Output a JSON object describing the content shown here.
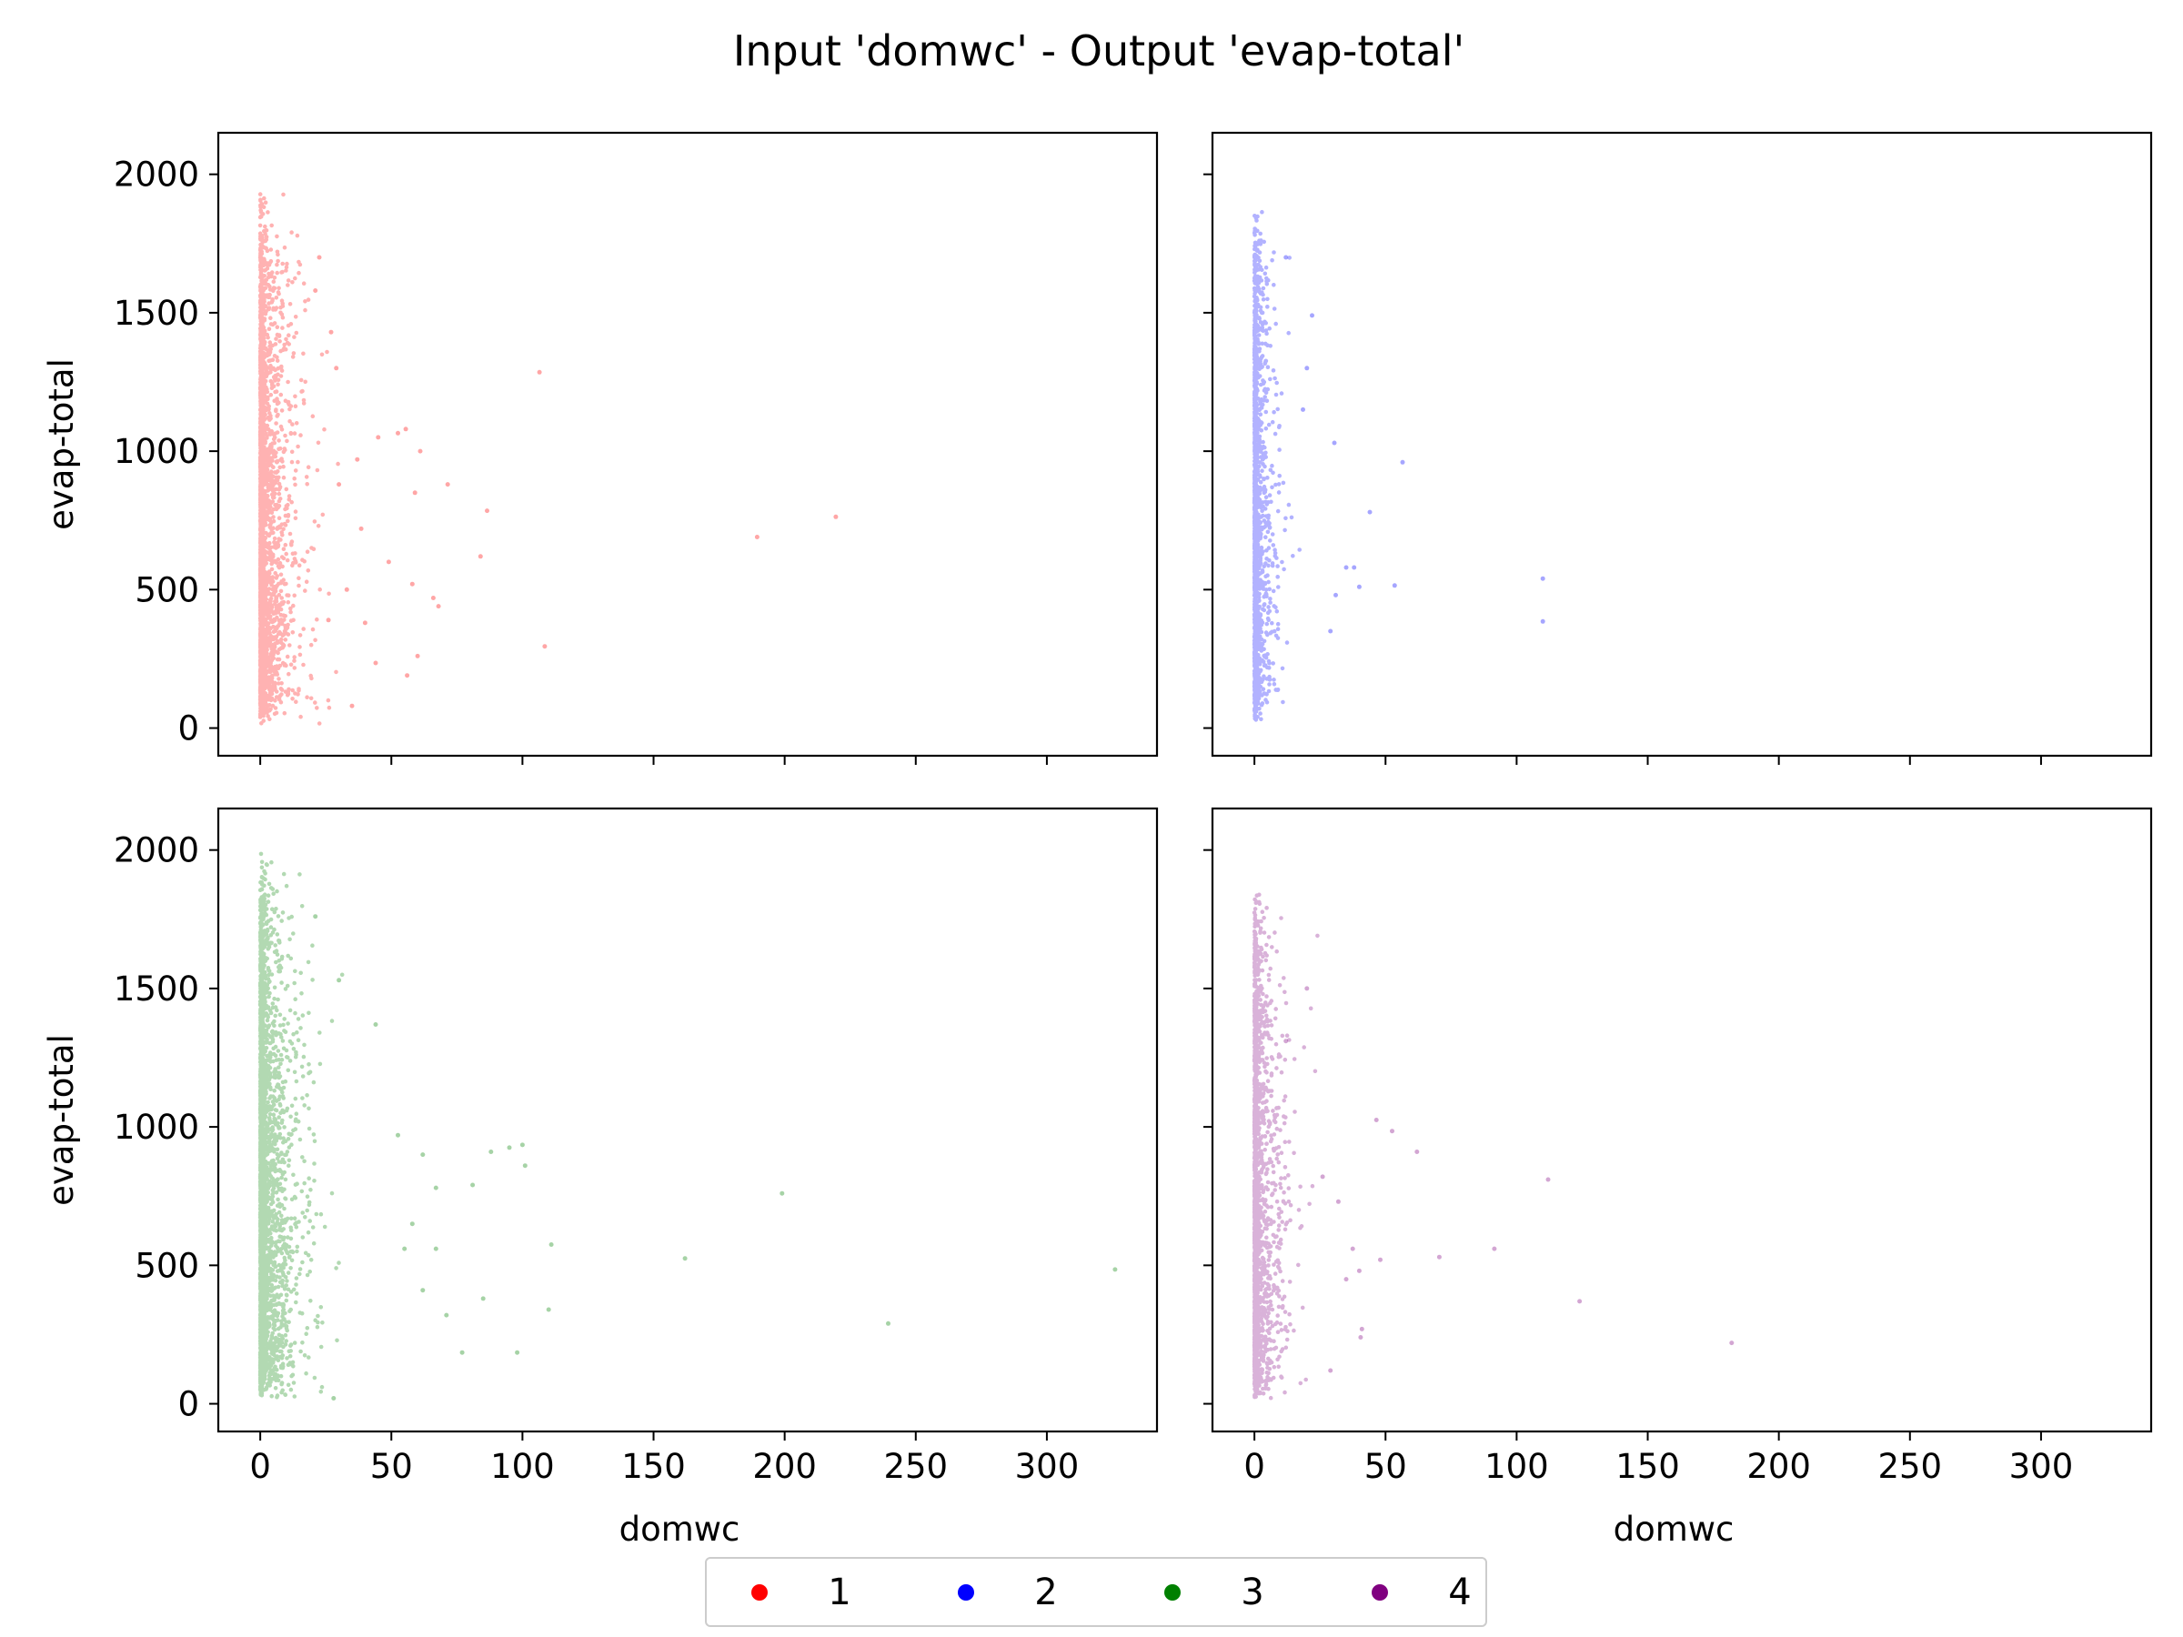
{
  "figure": {
    "title": "Input 'domwc' - Output 'evap-total'"
  },
  "chart_data": [
    {
      "type": "scatter",
      "panel": "top-left",
      "color": "#ff0000",
      "xlabel": "",
      "ylabel": "evap-total",
      "xlim": [
        -16,
        342
      ],
      "ylim": [
        -100,
        2150
      ],
      "xticks": [
        0,
        50,
        100,
        150,
        200,
        250,
        300
      ],
      "yticks": [
        0,
        500,
        1000,
        1500,
        2000
      ],
      "show_xticklabels": false,
      "show_yticklabels": true,
      "grid": false,
      "cluster": {
        "n": 3200,
        "ymax": 1950,
        "spread": 4.5
      },
      "outliers": [
        [
          106.5,
          1285
        ],
        [
          219.5,
          763
        ],
        [
          189.5,
          690
        ],
        [
          108.5,
          295
        ],
        [
          86.5,
          785
        ],
        [
          71.5,
          880
        ],
        [
          84,
          620
        ],
        [
          61,
          1000
        ],
        [
          52.5,
          1065
        ],
        [
          55.5,
          1080
        ],
        [
          45,
          1050
        ],
        [
          59,
          850
        ],
        [
          66,
          470
        ],
        [
          68,
          440
        ],
        [
          58,
          520
        ],
        [
          38.5,
          720
        ],
        [
          37,
          970
        ],
        [
          29,
          1300
        ],
        [
          27,
          1430
        ],
        [
          22.5,
          1700
        ],
        [
          21,
          1580
        ],
        [
          56,
          190
        ],
        [
          44,
          235
        ],
        [
          35,
          80
        ],
        [
          26,
          390
        ],
        [
          33,
          500
        ],
        [
          40,
          380
        ],
        [
          49,
          600
        ],
        [
          60,
          260
        ],
        [
          30,
          880
        ]
      ]
    },
    {
      "type": "scatter",
      "panel": "top-right",
      "color": "#0000ff",
      "xlabel": "",
      "ylabel": "",
      "xlim": [
        -16,
        342
      ],
      "ylim": [
        -100,
        2150
      ],
      "xticks": [
        0,
        50,
        100,
        150,
        200,
        250,
        300
      ],
      "yticks": [
        0,
        500,
        1000,
        1500,
        2000
      ],
      "show_xticklabels": false,
      "show_yticklabels": false,
      "grid": false,
      "cluster": {
        "n": 1700,
        "ymax": 1920,
        "spread": 2.8
      },
      "outliers": [
        [
          110,
          540
        ],
        [
          110,
          385
        ],
        [
          56.5,
          960
        ],
        [
          53.5,
          515
        ],
        [
          38,
          580
        ],
        [
          35,
          580
        ],
        [
          30.5,
          1030
        ],
        [
          22,
          1490
        ],
        [
          12,
          1700
        ],
        [
          20,
          1300
        ],
        [
          40,
          510
        ],
        [
          31,
          480
        ],
        [
          29,
          350
        ],
        [
          44,
          780
        ],
        [
          18.5,
          1150
        ]
      ]
    },
    {
      "type": "scatter",
      "panel": "bottom-left",
      "color": "#008000",
      "xlabel": "domwc",
      "ylabel": "evap-total",
      "xlim": [
        -16,
        342
      ],
      "ylim": [
        -100,
        2150
      ],
      "xticks": [
        0,
        50,
        100,
        150,
        200,
        250,
        300
      ],
      "yticks": [
        0,
        500,
        1000,
        1500,
        2000
      ],
      "show_xticklabels": true,
      "show_yticklabels": true,
      "grid": false,
      "cluster": {
        "n": 3400,
        "ymax": 2020,
        "spread": 5
      },
      "outliers": [
        [
          326,
          485
        ],
        [
          239.5,
          290
        ],
        [
          199,
          760
        ],
        [
          162,
          525
        ],
        [
          111,
          575
        ],
        [
          110,
          340
        ],
        [
          100,
          935
        ],
        [
          101,
          860
        ],
        [
          95,
          925
        ],
        [
          88,
          910
        ],
        [
          85,
          380
        ],
        [
          77,
          185
        ],
        [
          98,
          185
        ],
        [
          81,
          790
        ],
        [
          67,
          780
        ],
        [
          71,
          320
        ],
        [
          62,
          410
        ],
        [
          52.5,
          970
        ],
        [
          44,
          1370
        ],
        [
          58,
          650
        ],
        [
          62,
          900
        ],
        [
          67,
          560
        ],
        [
          30,
          1530
        ],
        [
          21,
          1760
        ],
        [
          28,
          20
        ],
        [
          55,
          560
        ]
      ]
    },
    {
      "type": "scatter",
      "panel": "bottom-right",
      "color": "#800080",
      "xlabel": "domwc",
      "ylabel": "",
      "xlim": [
        -16,
        342
      ],
      "ylim": [
        -100,
        2150
      ],
      "xticks": [
        0,
        50,
        100,
        150,
        200,
        250,
        300
      ],
      "yticks": [
        0,
        500,
        1000,
        1500,
        2000
      ],
      "show_xticklabels": true,
      "show_yticklabels": false,
      "grid": false,
      "cluster": {
        "n": 2200,
        "ymax": 1890,
        "spread": 3.5
      },
      "outliers": [
        [
          182,
          220
        ],
        [
          124,
          370
        ],
        [
          112,
          810
        ],
        [
          91.5,
          560
        ],
        [
          70.5,
          530
        ],
        [
          62,
          910
        ],
        [
          52.5,
          985
        ],
        [
          46.5,
          1025
        ],
        [
          48,
          520
        ],
        [
          40,
          480
        ],
        [
          37.5,
          560
        ],
        [
          41,
          270
        ],
        [
          40.5,
          240
        ],
        [
          32,
          730
        ],
        [
          20,
          1500
        ],
        [
          12,
          1310
        ],
        [
          26,
          820
        ],
        [
          35,
          450
        ],
        [
          29,
          120
        ]
      ]
    }
  ],
  "legend": {
    "placement": "bottom-center",
    "entries": [
      {
        "label": "1",
        "color": "#ff0000"
      },
      {
        "label": "2",
        "color": "#0000ff"
      },
      {
        "label": "3",
        "color": "#008000"
      },
      {
        "label": "4",
        "color": "#800080"
      }
    ]
  }
}
